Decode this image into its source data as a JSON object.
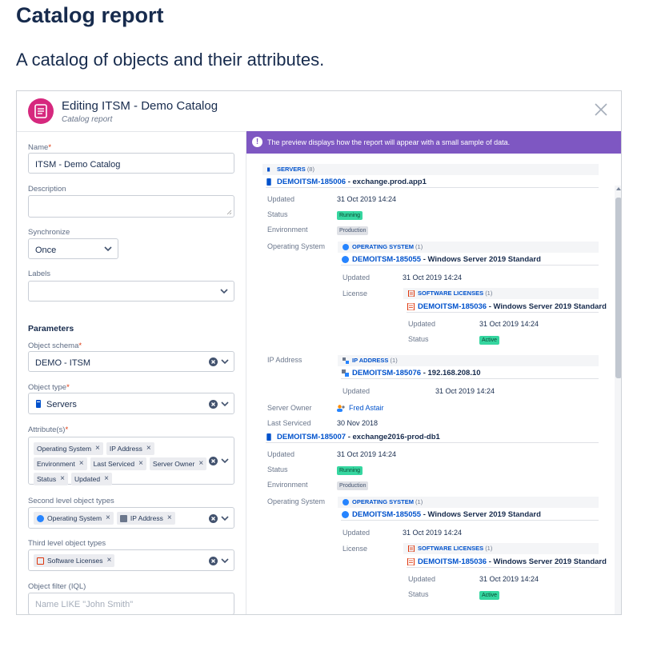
{
  "page": {
    "title": "Catalog report",
    "subtitle": "A catalog of objects and their attributes."
  },
  "dialog": {
    "title": "Editing ITSM - Demo Catalog",
    "subtitle": "Catalog report",
    "accent": "#d6287e"
  },
  "form": {
    "name_label": "Name",
    "name_value": "ITSM - Demo Catalog",
    "description_label": "Description",
    "description_value": "",
    "sync_label": "Synchronize",
    "sync_value": "Once",
    "labels_label": "Labels",
    "labels_value": "",
    "parameters_heading": "Parameters",
    "schema_label": "Object schema",
    "schema_value": "DEMO - ITSM",
    "type_label": "Object type",
    "type_value": "Servers",
    "attributes_label": "Attribute(s)",
    "attributes": [
      "Operating System",
      "IP Address",
      "Environment",
      "Last Serviced",
      "Server Owner",
      "Status",
      "Updated"
    ],
    "second_level_label": "Second level object types",
    "second_level": [
      "Operating System",
      "IP Address"
    ],
    "third_level_label": "Third level object types",
    "third_level": [
      "Software Licenses"
    ],
    "filter_label": "Object filter (IQL)",
    "filter_placeholder": "Name LIKE \"John Smith\""
  },
  "banner": {
    "text": "The preview displays how the report will appear with a small sample of data.",
    "color": "#7e57c2"
  },
  "preview": {
    "servers_group": "SERVERS",
    "servers_count": "(8)",
    "attr": {
      "updated": "Updated",
      "status": "Status",
      "environment": "Environment",
      "os": "Operating System",
      "license": "License",
      "ip": "IP Address",
      "owner": "Server Owner",
      "serviced": "Last Serviced"
    },
    "server1": {
      "key": "DEMOITSM-185006",
      "name": " - exchange.prod.app1",
      "updated": "31 Oct 2019 14:24",
      "status": "Running",
      "environment": "Production",
      "os_group": "OPERATING SYSTEM",
      "os_count": "(1)",
      "os_key": "DEMOITSM-185055",
      "os_name": " - Windows Server 2019 Standard",
      "os_updated": "31 Oct 2019 14:24",
      "lic_group": "SOFTWARE LICENSES",
      "lic_count": "(1)",
      "lic_key": "DEMOITSM-185036",
      "lic_name": " - Windows Server 2019 Standard",
      "lic_updated": "31 Oct 2019 14:24",
      "lic_status": "Active",
      "ip_group": "IP ADDRESS",
      "ip_count": "(1)",
      "ip_key": "DEMOITSM-185076",
      "ip_name": " - 192.168.208.10",
      "ip_updated": "31 Oct 2019 14:24",
      "owner": "Fred Astair",
      "serviced": "30 Nov 2018"
    },
    "server2": {
      "key": "DEMOITSM-185007",
      "name": " - exchange2016-prod-db1",
      "updated": "31 Oct 2019 14:24",
      "status": "Running",
      "environment": "Production",
      "os_group": "OPERATING SYSTEM",
      "os_count": "(1)",
      "os_key": "DEMOITSM-185055",
      "os_name": " - Windows Server 2019 Standard",
      "os_updated": "31 Oct 2019 14:24",
      "lic_group": "SOFTWARE LICENSES",
      "lic_count": "(1)",
      "lic_key": "DEMOITSM-185036",
      "lic_name": " - Windows Server 2019 Standard",
      "lic_updated": "31 Oct 2019 14:24",
      "lic_status": "Active"
    }
  }
}
